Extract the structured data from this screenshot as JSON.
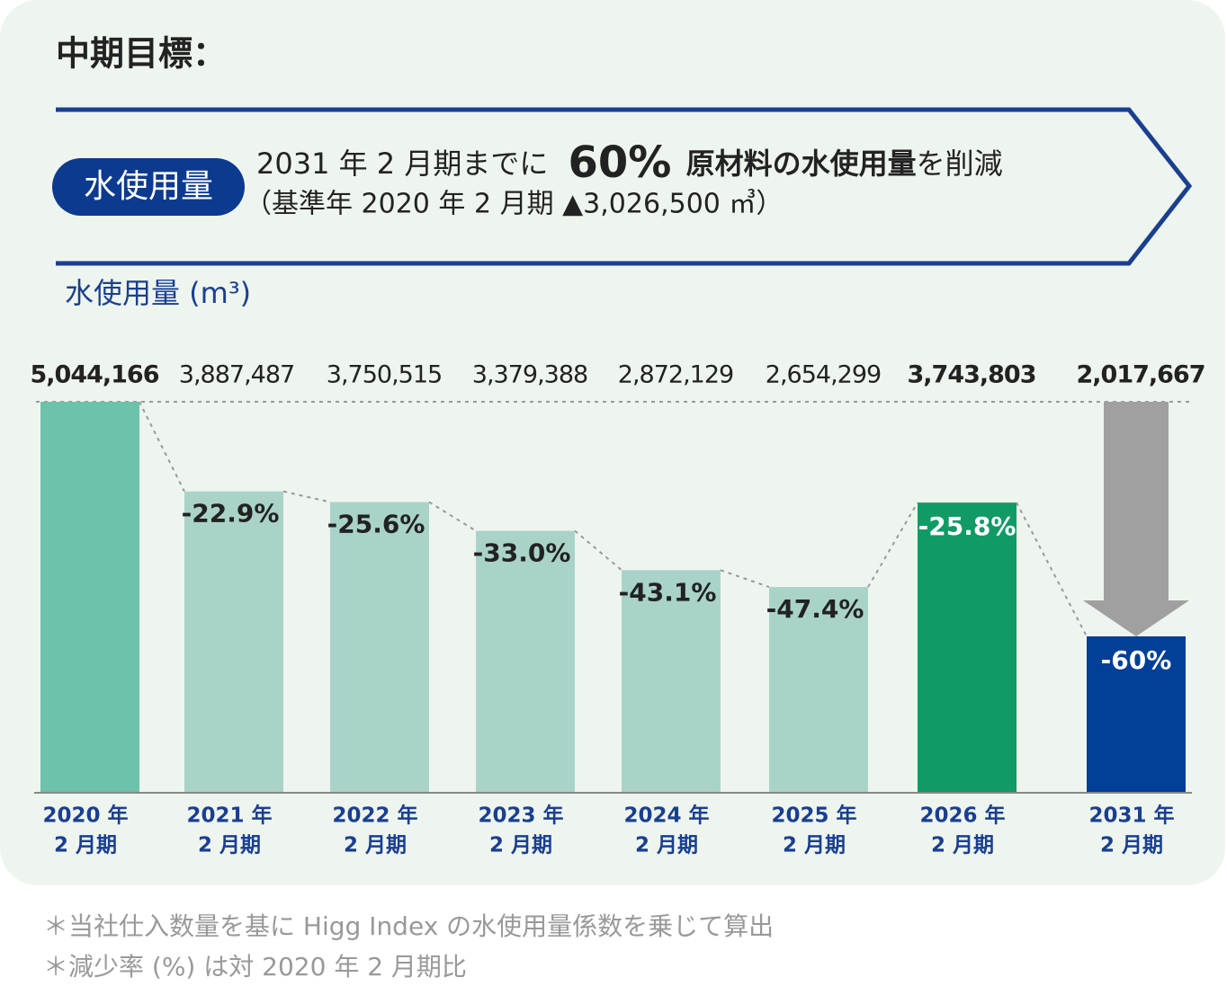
{
  "chart_data": {
    "type": "bar",
    "title": "中期目標：",
    "badge": "水使用量",
    "headline": {
      "before": "2031 年 2 月期までに",
      "highlight": "60%",
      "bold": "原材料の水使用量",
      "after": "を削減"
    },
    "subline": "（基準年 2020 年 2 月期 ▲3,026,500 ㎥）",
    "y_label": "水使用量 (m³)",
    "categories": [
      [
        "2020 年",
        "2 月期"
      ],
      [
        "2021 年",
        "2 月期"
      ],
      [
        "2022 年",
        "2 月期"
      ],
      [
        "2023 年",
        "2 月期"
      ],
      [
        "2024 年",
        "2 月期"
      ],
      [
        "2025 年",
        "2 月期"
      ],
      [
        "2026 年",
        "2 月期"
      ],
      [
        "2031 年",
        "2 月期"
      ]
    ],
    "values": [
      5044166,
      3887487,
      3750515,
      3379388,
      2872129,
      2654299,
      3743803,
      2017667
    ],
    "value_labels": [
      "5,044,166",
      "3,887,487",
      "3,750,515",
      "3,379,388",
      "2,872,129",
      "2,654,299",
      "3,743,803",
      "2,017,667"
    ],
    "changes": [
      null,
      -22.9,
      -25.6,
      -33.0,
      -43.1,
      -47.4,
      -25.8,
      -60
    ],
    "change_labels": [
      null,
      "-22.9%",
      "-25.6%",
      "-33.0%",
      "-43.1%",
      "-47.4%",
      "-25.8%",
      "-60%"
    ],
    "colors": [
      "#6cc2aa",
      "#a9d3c8",
      "#a9d3c8",
      "#a9d3c8",
      "#a9d3c8",
      "#a9d3c8",
      "#119a65",
      "#023f96"
    ],
    "ylim": [
      0,
      5044166
    ],
    "notes": [
      "＊当社仕入数量を基に Higg Index の水使用量係数を乗じて算出",
      "＊減少率 (%) は対 2020 年 2 月期比"
    ]
  }
}
